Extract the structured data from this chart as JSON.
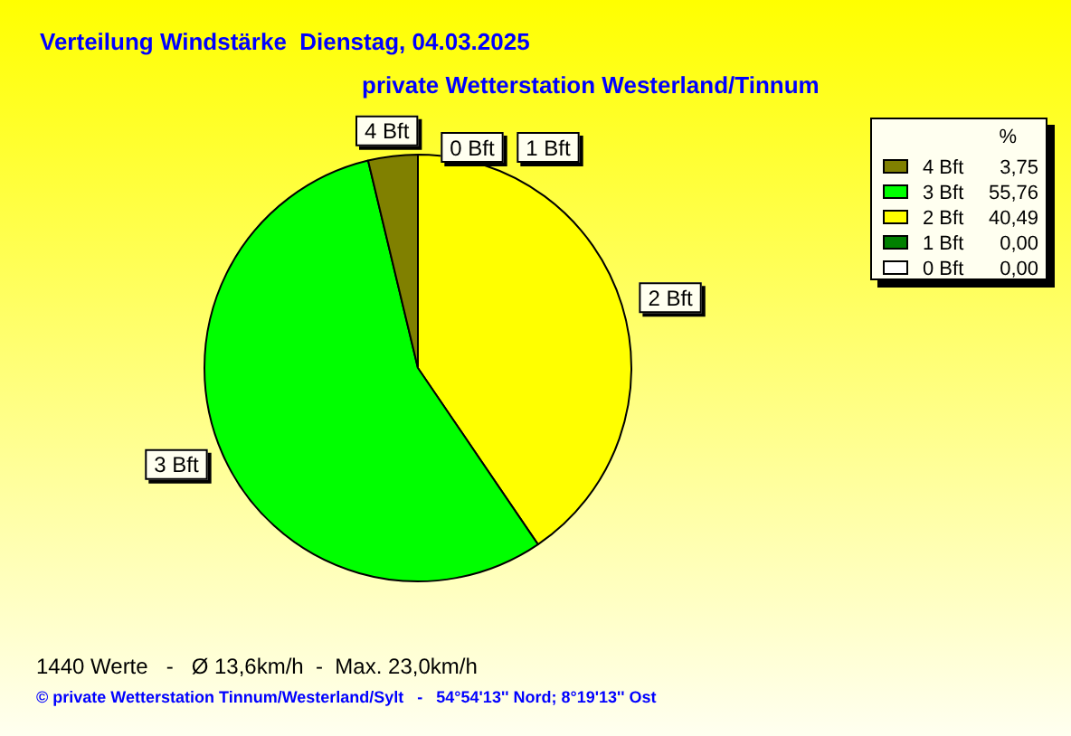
{
  "chart_data": {
    "type": "pie",
    "title": "Verteilung Windstärke  Dienstag, 04.03.2025",
    "subtitle": "private Wetterstation Westerland/Tinnum",
    "categories": [
      "4 Bft",
      "3 Bft",
      "2 Bft",
      "1 Bft",
      "0 Bft"
    ],
    "values": [
      3.75,
      55.76,
      40.49,
      0,
      0
    ],
    "colors": [
      "#808000",
      "#00ff00",
      "#ffff00",
      "#008000",
      "#ffffff"
    ],
    "value_labels": [
      "3,75",
      "55,76",
      "40,49",
      "0,00",
      "0,00"
    ],
    "legend": "top right",
    "legend_title": "%",
    "annotations": [
      "1440 Werte   -   Ø 13,6km/h  -  Max. 23,0km/h",
      "© private Wetterstation Tinnum/Westerland/Sylt   -   54°54'13'' Nord; 8°19'13'' Ost"
    ]
  }
}
